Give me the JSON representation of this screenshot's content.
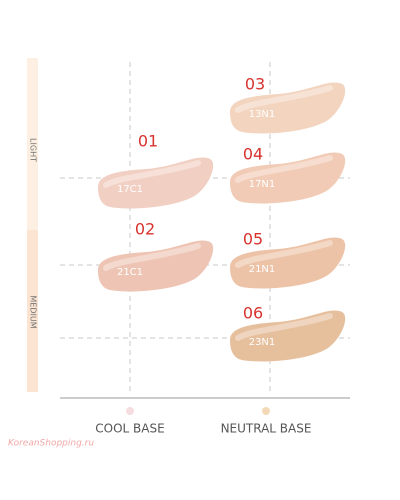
{
  "side_labels": [
    "LIGHT",
    "MEDIUM"
  ],
  "swatches": [
    {
      "number": "01",
      "code": "17C1",
      "color": "#f1cfc2"
    },
    {
      "number": "02",
      "code": "21C1",
      "color": "#eec5b4"
    },
    {
      "number": "03",
      "code": "13N1",
      "color": "#f3d4bf"
    },
    {
      "number": "04",
      "code": "17N1",
      "color": "#f1cbb5"
    },
    {
      "number": "05",
      "code": "21N1",
      "color": "#edc3a8"
    },
    {
      "number": "06",
      "code": "23N1",
      "color": "#e6bf9d"
    }
  ],
  "bases": [
    {
      "label": "COOL BASE",
      "color": "#f6dde0"
    },
    {
      "label": "NEUTRAL BASE",
      "color": "#f3d9b8"
    }
  ],
  "watermark": "KoreanShopping.ru"
}
